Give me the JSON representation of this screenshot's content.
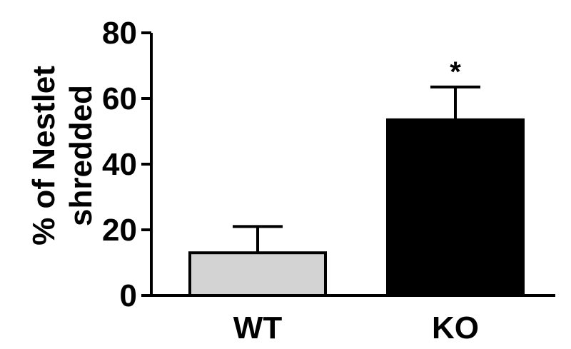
{
  "chart_data": {
    "type": "bar",
    "title": "",
    "xlabel": "",
    "ylabel_lines": [
      "% of Nestlet",
      "shredded"
    ],
    "ylim": [
      0,
      80
    ],
    "yticks": [
      "0",
      "20",
      "40",
      "60",
      "80"
    ],
    "categories": [
      "WT",
      "KO"
    ],
    "values": [
      13,
      53.5
    ],
    "errors": [
      8,
      10
    ],
    "bar_colors": [
      "#d3d3d3",
      "#000000"
    ],
    "annotations": [
      {
        "category": "KO",
        "text": "*"
      }
    ],
    "grid": false,
    "legend": "none"
  }
}
